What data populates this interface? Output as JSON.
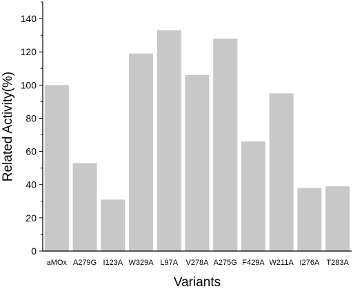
{
  "chart_data": {
    "type": "bar",
    "title": "",
    "xlabel": "Variants",
    "ylabel": "Related Activity(%)",
    "categories": [
      "aMOx",
      "A279G",
      "I123A",
      "W329A",
      "L97A",
      "V278A",
      "A275G",
      "F429A",
      "W211A",
      "I276A",
      "T283A"
    ],
    "values": [
      100,
      53,
      31,
      119,
      133,
      106,
      128,
      66,
      95,
      38,
      39
    ],
    "ylim": [
      0,
      150
    ],
    "yticks": [
      0,
      20,
      40,
      60,
      80,
      100,
      120,
      140
    ],
    "grid": false,
    "bar_color": "#c8c8c8",
    "axis_color": "#000000"
  }
}
